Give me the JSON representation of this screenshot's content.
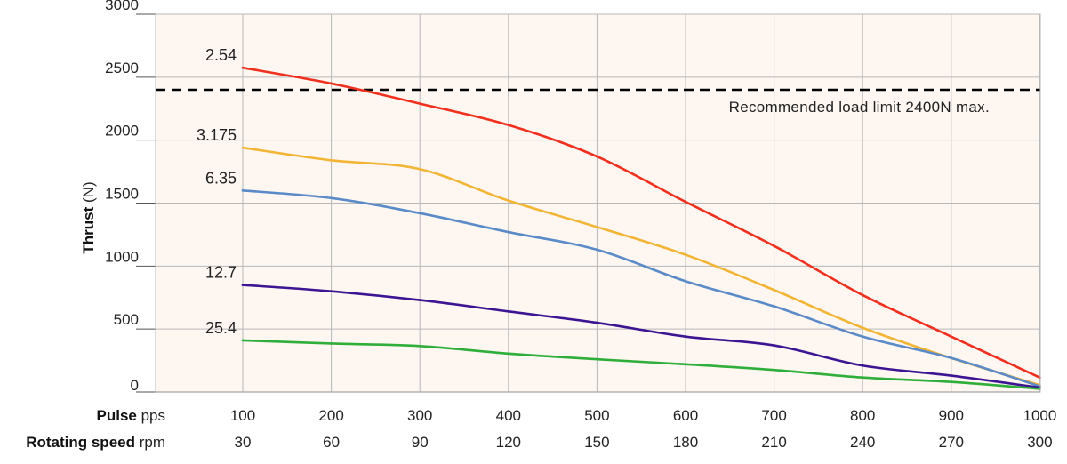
{
  "chart_data": {
    "type": "line",
    "ylabel_bold": "Thrust",
    "ylabel_unit": "(N)",
    "ylim": [
      0,
      3000
    ],
    "yticks": [
      0,
      500,
      1000,
      1500,
      2000,
      2500,
      3000
    ],
    "x": [
      100,
      200,
      300,
      400,
      500,
      600,
      700,
      800,
      900,
      1000
    ],
    "x_axis_rows": [
      {
        "label_bold": "Pulse",
        "label_unit": "pps",
        "ticks": [
          "100",
          "200",
          "300",
          "400",
          "500",
          "600",
          "700",
          "800",
          "900",
          "1000"
        ]
      },
      {
        "label_bold": "Rotating speed",
        "label_unit": "rpm",
        "ticks": [
          "30",
          "60",
          "90",
          "120",
          "150",
          "180",
          "210",
          "240",
          "270",
          "300"
        ]
      }
    ],
    "grid": true,
    "background": "#fdf6f1",
    "gridcolor": "#b8b8b8",
    "series": [
      {
        "name": "2.54",
        "color": "#f0301e",
        "values": [
          2575,
          2450,
          2290,
          2120,
          1870,
          1510,
          1160,
          770,
          440,
          115
        ]
      },
      {
        "name": "3.175",
        "color": "#f2b535",
        "values": [
          1940,
          1840,
          1770,
          1520,
          1310,
          1090,
          810,
          510,
          270,
          55
        ]
      },
      {
        "name": "6.35",
        "color": "#5b8ac8",
        "values": [
          1600,
          1540,
          1420,
          1270,
          1130,
          880,
          680,
          440,
          270,
          45
        ]
      },
      {
        "name": "12.7",
        "color": "#3d1593",
        "values": [
          850,
          800,
          730,
          640,
          550,
          440,
          370,
          210,
          130,
          35
        ]
      },
      {
        "name": "25.4",
        "color": "#2fae3a",
        "values": [
          410,
          385,
          365,
          305,
          260,
          220,
          175,
          115,
          80,
          25
        ]
      }
    ],
    "reference_line": {
      "value": 2400,
      "label": "Recommended load limit 2400N max.",
      "color": "#000000"
    }
  }
}
